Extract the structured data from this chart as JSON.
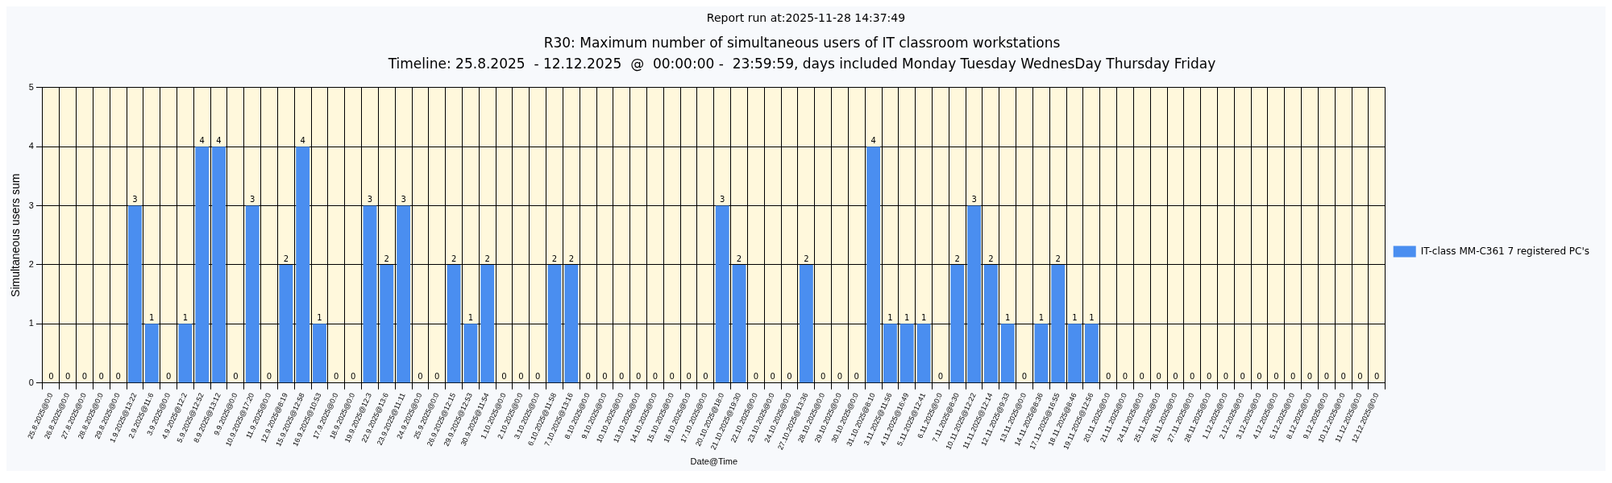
{
  "chart_data": {
    "type": "bar",
    "title": "R30: Maximum number of simultaneous users of IT classroom workstations",
    "subtitle": "Timeline: 25.8.2025  - 12.12.2025  @  00:00:00 -  23:59:59, days included Monday Tuesday WednesDay Thursday Friday",
    "annotations": [
      "Report run at:2025-11-28 14:37:49"
    ],
    "xlabel": "Date@Time",
    "ylabel": "Simultaneous users sum",
    "categories": [
      "25.8.2025@0:0",
      "26.8.2025@0:0",
      "27.8.2025@0:0",
      "28.8.2025@0:0",
      "29.8.2025@0:0",
      "1.9.2025@13:22",
      "2.9.2025@11:6",
      "3.9.2025@0:0",
      "4.9.2025@12:2",
      "5.9.2025@12:52",
      "8.9.2025@13:12",
      "9.9.2025@0:0",
      "10.9.2025@17:20",
      "11.9.2025@0:0",
      "12.9.2025@8:19",
      "15.9.2025@12:58",
      "16.9.2025@10:53",
      "17.9.2025@0:0",
      "18.9.2025@0:0",
      "19.9.2025@12:3",
      "22.9.2025@13:6",
      "23.9.2025@11:11",
      "24.9.2025@0:0",
      "25.9.2025@0:0",
      "26.9.2025@12:15",
      "29.9.2025@12:53",
      "30.9.2025@11:54",
      "1.10.2025@0:0",
      "2.10.2025@0:0",
      "3.10.2025@0:0",
      "6.10.2025@11:58",
      "7.10.2025@13:16",
      "8.10.2025@0:0",
      "9.10.2025@0:0",
      "10.10.2025@0:0",
      "13.10.2025@0:0",
      "14.10.2025@0:0",
      "15.10.2025@0:0",
      "16.10.2025@0:0",
      "17.10.2025@0:0",
      "20.10.2025@18:0",
      "21.10.2025@19:30",
      "22.10.2025@0:0",
      "23.10.2025@0:0",
      "24.10.2025@0:0",
      "27.10.2025@13:36",
      "28.10.2025@0:0",
      "29.10.2025@0:0",
      "30.10.2025@0:0",
      "31.10.2025@8:10",
      "3.11.2025@11:56",
      "4.11.2025@16:49",
      "5.11.2025@12:41",
      "6.11.2025@0:0",
      "7.11.2025@8:30",
      "10.11.2025@12:22",
      "11.11.2025@12:14",
      "12.11.2025@9:33",
      "13.11.2025@0:0",
      "14.11.2025@8:36",
      "17.11.2025@16:55",
      "18.11.2025@8:46",
      "19.11.2025@12:56",
      "20.11.2025@0:0",
      "21.11.2025@0:0",
      "24.11.2025@0:0",
      "25.11.2025@0:0",
      "26.11.2025@0:0",
      "27.11.2025@0:0",
      "28.11.2025@0:0",
      "1.12.2025@0:0",
      "2.12.2025@0:0",
      "3.12.2025@0:0",
      "4.12.2025@0:0",
      "5.12.2025@0:0",
      "8.12.2025@0:0",
      "9.12.2025@0:0",
      "10.12.2025@0:0",
      "11.12.2025@0:0",
      "12.12.2025@0:0"
    ],
    "series": [
      {
        "name": "IT-class MM-C361 7 registered PC's",
        "color": "#4a8ef0",
        "values": [
          0,
          0,
          0,
          0,
          0,
          3,
          1,
          0,
          1,
          4,
          4,
          0,
          3,
          0,
          2,
          4,
          1,
          0,
          0,
          3,
          2,
          3,
          0,
          0,
          2,
          1,
          2,
          0,
          0,
          0,
          2,
          2,
          0,
          0,
          0,
          0,
          0,
          0,
          0,
          0,
          3,
          2,
          0,
          0,
          0,
          2,
          0,
          0,
          0,
          4,
          1,
          1,
          1,
          0,
          2,
          3,
          2,
          1,
          0,
          1,
          2,
          1,
          1,
          0,
          0,
          0,
          0,
          0,
          0,
          0,
          0,
          0,
          0,
          0,
          0,
          0,
          0,
          0,
          0,
          0
        ]
      }
    ],
    "ylim": [
      0,
      5
    ],
    "yticks": [
      0,
      1,
      2,
      3,
      4,
      5
    ],
    "grid": true,
    "legend": "right",
    "data_labels": true
  }
}
